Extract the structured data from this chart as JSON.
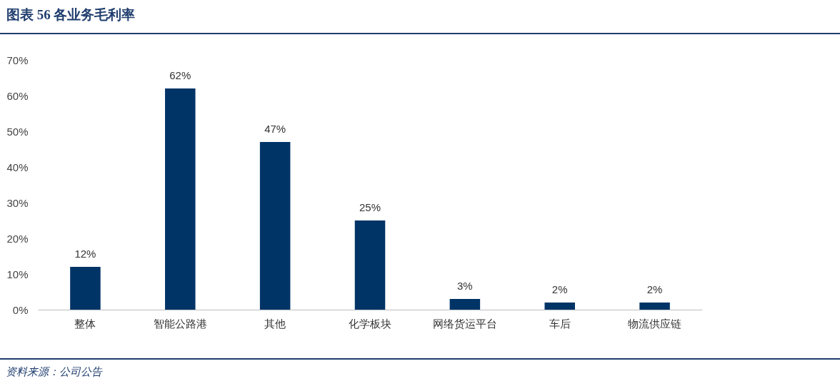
{
  "chart_data": {
    "type": "bar",
    "title": "图表 56 各业务毛利率",
    "categories": [
      "整体",
      "智能公路港",
      "其他",
      "化学板块",
      "网络货运平台",
      "车后",
      "物流供应链"
    ],
    "values": [
      12,
      62,
      47,
      25,
      3,
      2,
      2
    ],
    "value_labels": [
      "12%",
      "62%",
      "47%",
      "25%",
      "3%",
      "2%",
      "2%"
    ],
    "color": "#003466",
    "ylim": [
      0,
      70
    ],
    "yticks": [
      {
        "value": 0,
        "label": "0%"
      },
      {
        "value": 10,
        "label": "10%"
      },
      {
        "value": 20,
        "label": "20%"
      },
      {
        "value": 30,
        "label": "30%"
      },
      {
        "value": 40,
        "label": "40%"
      },
      {
        "value": 50,
        "label": "50%"
      },
      {
        "value": 60,
        "label": "60%"
      },
      {
        "value": 70,
        "label": "70%"
      }
    ],
    "grid": false,
    "annotations": [
      "资料来源：公司公告"
    ]
  }
}
